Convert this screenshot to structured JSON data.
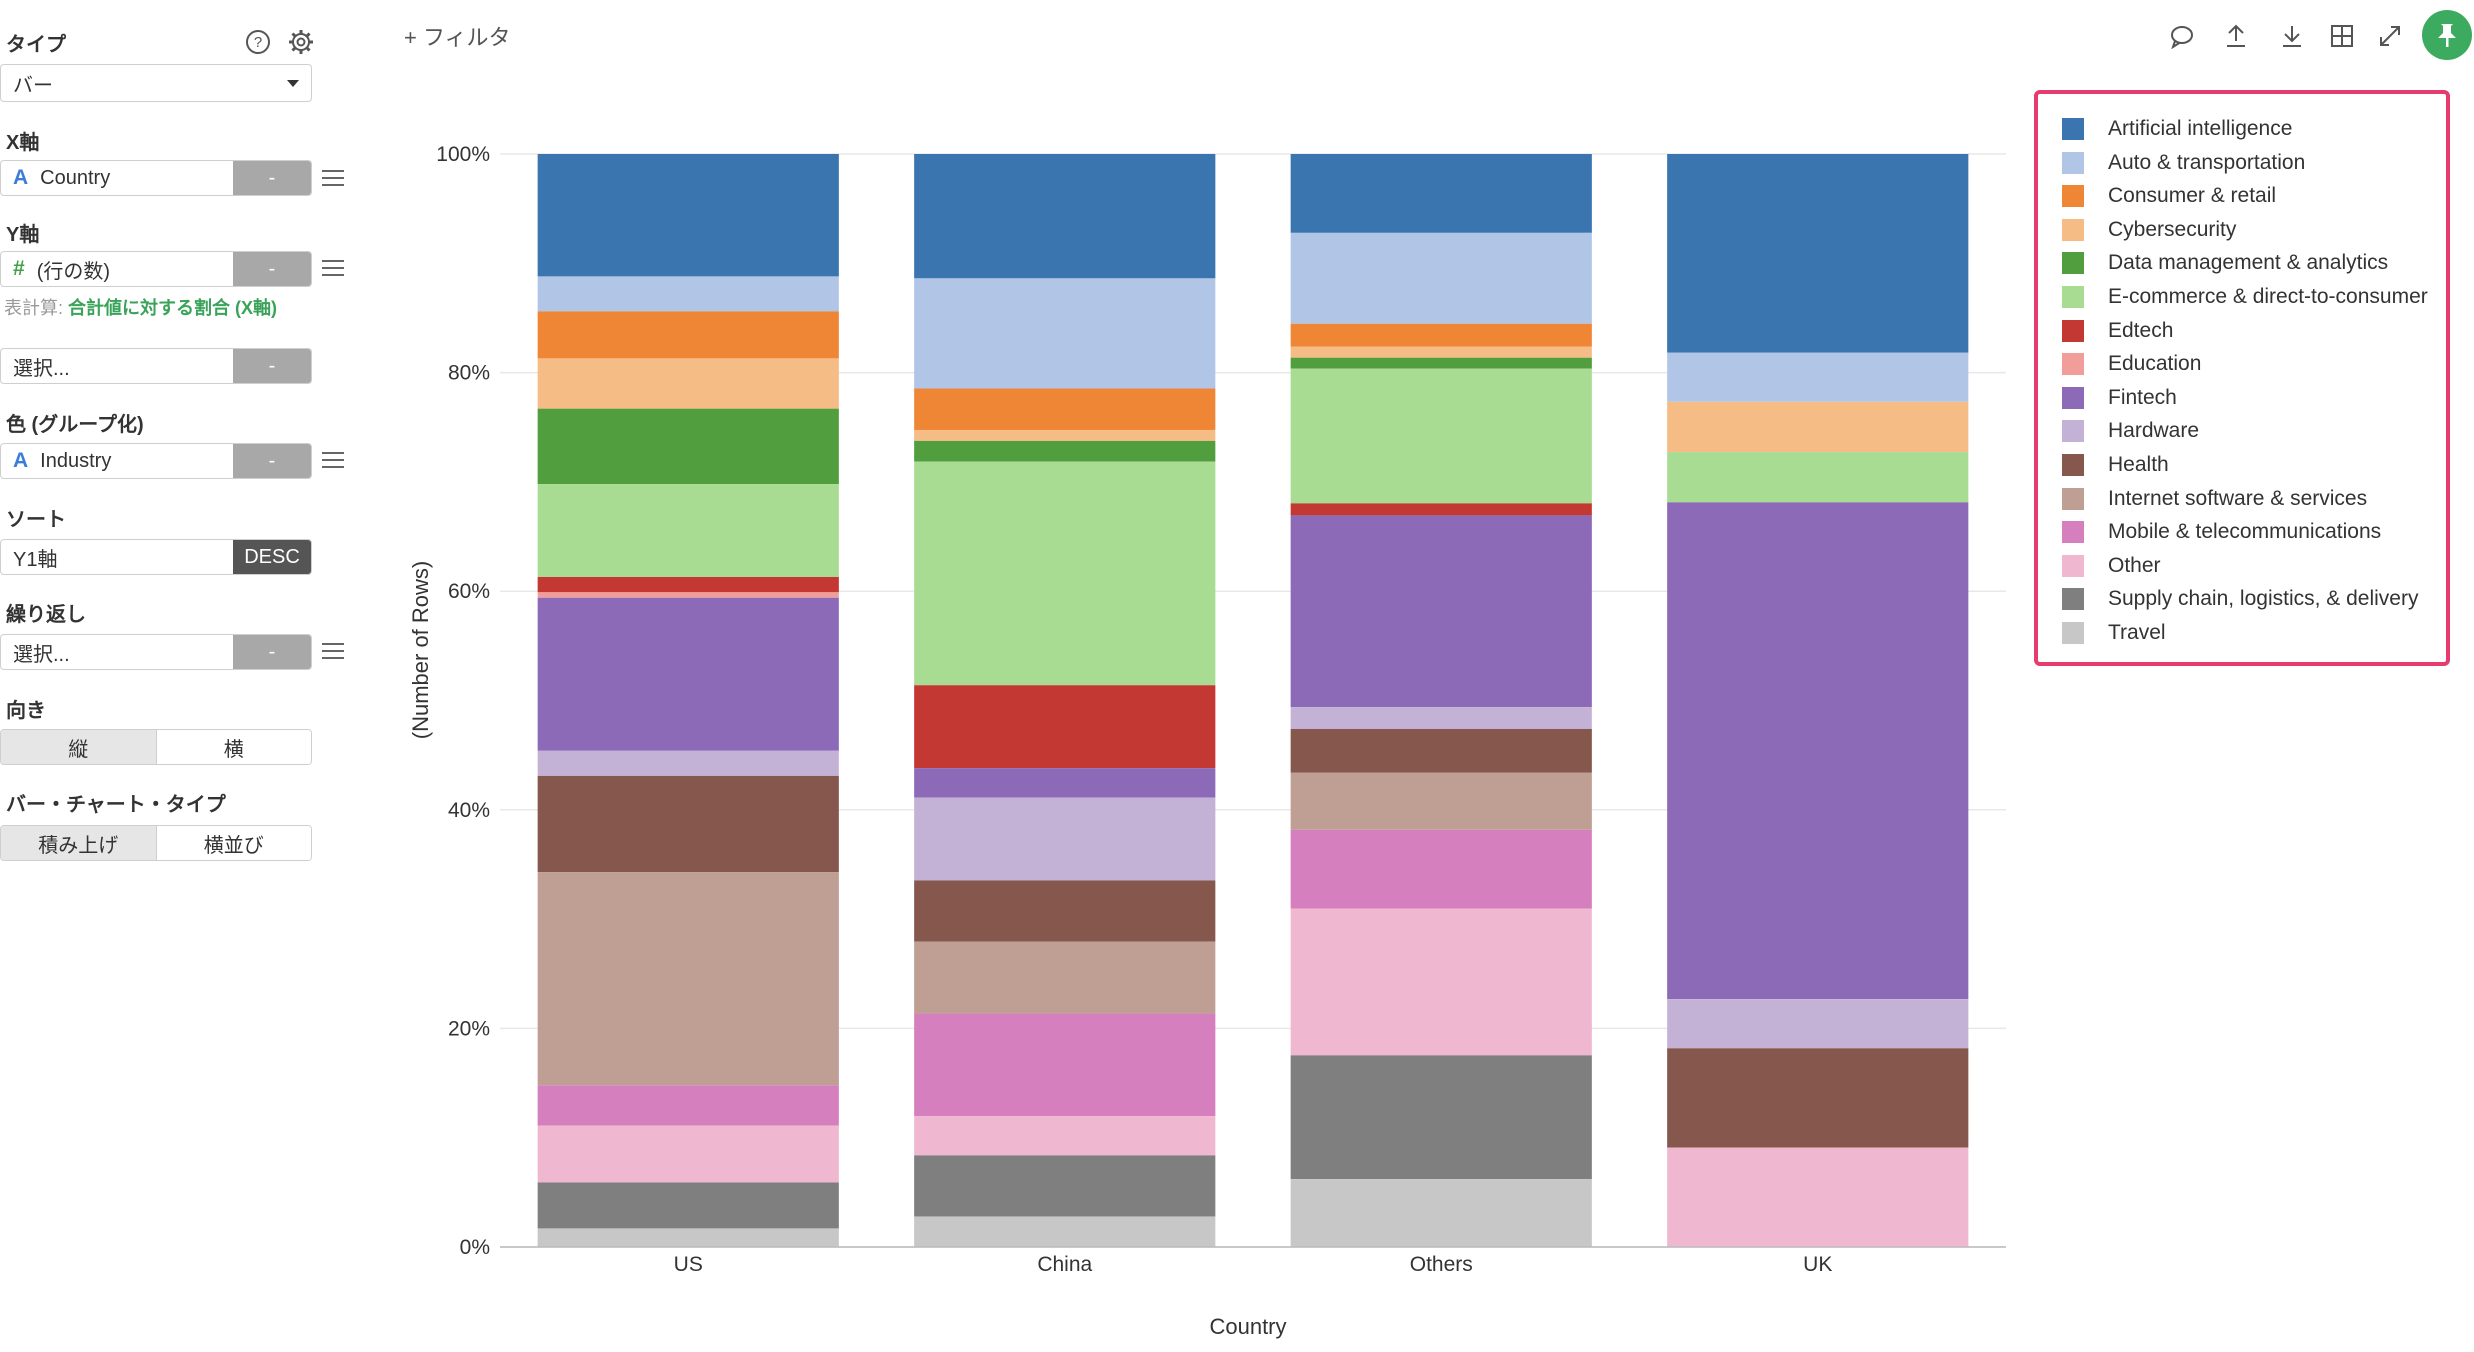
{
  "panel": {
    "type_label": "タイプ",
    "type_value": "バー",
    "x_label": "X軸",
    "x_field": "Country",
    "x_btn": "-",
    "y_label": "Y軸",
    "y_field": "(行の数)",
    "y_btn": "-",
    "calc_prefix": "表計算: ",
    "calc_value": "合計値に対する割合 (X軸)",
    "extra_select": "選択...",
    "extra_btn": "-",
    "color_label": "色 (グループ化)",
    "color_field": "Industry",
    "color_btn": "-",
    "sort_label": "ソート",
    "sort_field": "Y1軸",
    "sort_btn": "DESC",
    "repeat_label": "繰り返し",
    "repeat_select": "選択...",
    "repeat_btn": "-",
    "orient_label": "向き",
    "orient_vertical": "縦",
    "orient_horizontal": "横",
    "bar_type_label": "バー・チャート・タイプ",
    "bar_type_stacked": "積み上げ",
    "bar_type_side": "横並び",
    "help_icon_char": "?"
  },
  "toolbar": {
    "add_filter": "+ フィルタ",
    "icons": [
      "comment-icon",
      "upload-icon",
      "download-icon",
      "table-icon",
      "expand-icon",
      "pin-icon"
    ]
  },
  "colors": {
    "accent_green": "#3dab5f",
    "legend_border": "#e63c6d"
  },
  "chart_data": {
    "type": "bar",
    "stacked": true,
    "normalized": true,
    "xlabel": "Country",
    "ylabel": "(Number of Rows)",
    "ylim": [
      0,
      100
    ],
    "yticks": [
      "0%",
      "20%",
      "40%",
      "60%",
      "80%",
      "100%"
    ],
    "grid": true,
    "legend_position": "right",
    "categories": [
      "US",
      "China",
      "Others",
      "UK"
    ],
    "series": [
      {
        "name": "Artificial intelligence",
        "color": "#3a75b0",
        "values": [
          11.2,
          11.4,
          7.2,
          18.2
        ]
      },
      {
        "name": "Auto & transportation",
        "color": "#b1c6e6",
        "values": [
          3.2,
          10.1,
          8.3,
          4.5
        ]
      },
      {
        "name": "Consumer & retail",
        "color": "#ef8636",
        "values": [
          4.3,
          3.8,
          2.1,
          0
        ]
      },
      {
        "name": "Cybersecurity",
        "color": "#f5bc86",
        "values": [
          4.6,
          1.0,
          1.0,
          4.6
        ]
      },
      {
        "name": "Data management & analytics",
        "color": "#519e3e",
        "values": [
          6.9,
          1.9,
          1.0,
          0
        ]
      },
      {
        "name": "E-commerce & direct-to-consumer",
        "color": "#a8dc92",
        "values": [
          8.5,
          20.5,
          12.3,
          4.6
        ]
      },
      {
        "name": "Edtech",
        "color": "#c43833",
        "values": [
          1.4,
          7.6,
          1.1,
          0
        ]
      },
      {
        "name": "Education",
        "color": "#f19e9a",
        "values": [
          0.5,
          0,
          0,
          0
        ]
      },
      {
        "name": "Fintech",
        "color": "#8d6ab8",
        "values": [
          14.0,
          2.7,
          17.5,
          45.5
        ]
      },
      {
        "name": "Hardware",
        "color": "#c3b2d6",
        "values": [
          2.3,
          7.6,
          2.0,
          4.5
        ]
      },
      {
        "name": "Health",
        "color": "#85574d",
        "values": [
          8.8,
          5.6,
          4.0,
          9.1
        ]
      },
      {
        "name": "Internet software & services",
        "color": "#bf9e94",
        "values": [
          19.5,
          6.6,
          5.2,
          0
        ]
      },
      {
        "name": "Mobile & telecommunications",
        "color": "#d57fbe",
        "values": [
          3.7,
          9.4,
          7.2,
          0
        ]
      },
      {
        "name": "Other",
        "color": "#efb8d0",
        "values": [
          5.2,
          3.6,
          13.4,
          9.1
        ]
      },
      {
        "name": "Supply chain, logistics, & delivery",
        "color": "#7f7f7f",
        "values": [
          4.2,
          5.6,
          11.3,
          0
        ]
      },
      {
        "name": "Travel",
        "color": "#c7c7c7",
        "values": [
          1.7,
          2.8,
          6.2,
          0
        ]
      }
    ]
  }
}
